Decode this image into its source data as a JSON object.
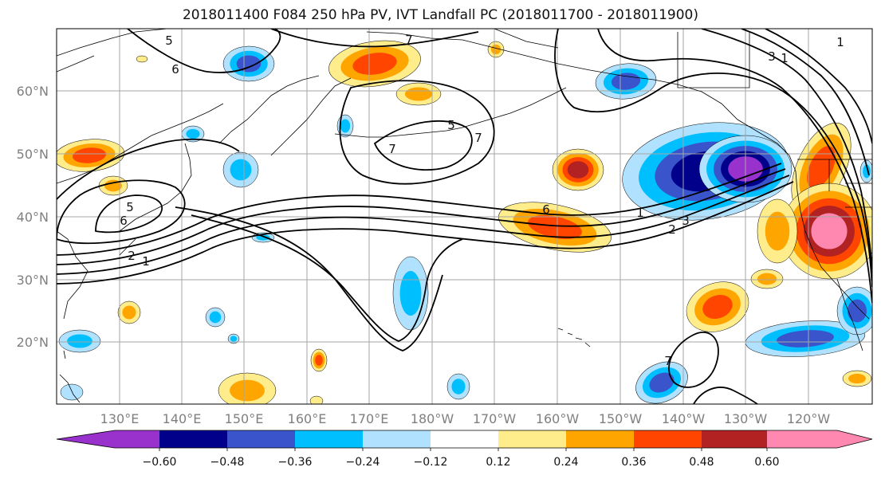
{
  "title": "2018011400 F084 250 hPa PV, IVT Landfall PC (2018011700 - 2018011900)",
  "map": {
    "lat_labels": [
      "60°N",
      "50°N",
      "40°N",
      "30°N",
      "20°N"
    ],
    "lon_labels": [
      "130°E",
      "140°E",
      "150°E",
      "160°E",
      "170°E",
      "180°W",
      "170°W",
      "160°W",
      "150°W",
      "140°W",
      "130°W",
      "120°W"
    ],
    "contour_labels": [
      "5",
      "6",
      "1",
      "7",
      "5",
      "7",
      "6",
      "2",
      "1",
      "7",
      "6",
      "5",
      "1",
      "7",
      "3",
      "1",
      "2",
      "3"
    ]
  },
  "colorbar": {
    "tick_labels": [
      "−0.60",
      "−0.48",
      "−0.36",
      "−0.24",
      "−0.12",
      "0.12",
      "0.24",
      "0.36",
      "0.48",
      "0.60"
    ],
    "colors": [
      "#9932cc",
      "#00008b",
      "#3a55cc",
      "#00bfff",
      "#b0e2ff",
      "#ffffff",
      "#ffec8b",
      "#ffa500",
      "#ff4500",
      "#b22222",
      "#ff88b0"
    ]
  },
  "colors": {
    "contour": "#000000",
    "grid": "#a6a6a6",
    "tick_label": "#7f7f7f"
  }
}
